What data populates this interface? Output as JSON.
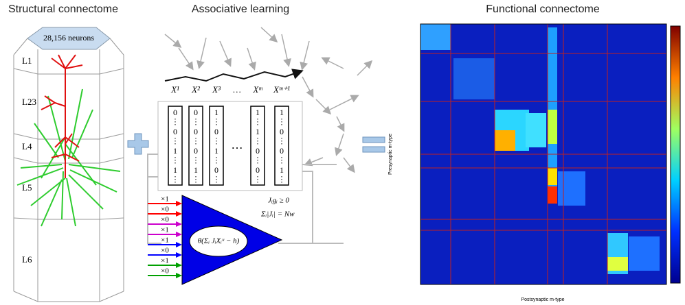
{
  "titles": {
    "structural": "Structural connectome",
    "associative": "Associative learning",
    "functional": "Functional connectome"
  },
  "column": {
    "neuron_count": "28,156 neurons",
    "layers": [
      "L1",
      "L23",
      "L4",
      "L5",
      "L6"
    ]
  },
  "patterns": {
    "labels": [
      "X¹",
      "X²",
      "X³",
      "…",
      "Xᵐ",
      "Xᵐ⁺¹"
    ]
  },
  "vectors": [
    [
      "0",
      "0",
      "1",
      "1"
    ],
    [
      "0",
      "0",
      "0",
      "1"
    ],
    [
      "1",
      "0",
      "1",
      "0"
    ],
    [
      "1",
      "1",
      "0",
      "0"
    ],
    [
      "1",
      "0",
      "0",
      "1"
    ]
  ],
  "vector_gap": "…",
  "perceptron": {
    "weights": [
      "×1",
      "×0",
      "×0",
      "×1",
      "×1",
      "×0",
      "×1",
      "×0"
    ],
    "constraint_sign": "Jᵢgᵢ ≥ 0",
    "constraint_norm": "Σᵢ|Jᵢ| = Nw",
    "formula": "θ(Σᵢ JᵢXᵢᵘ − h)"
  },
  "heatmap": {
    "x_label": "Postsynaptic m-type",
    "y_label": "Presynaptic m-type"
  }
}
